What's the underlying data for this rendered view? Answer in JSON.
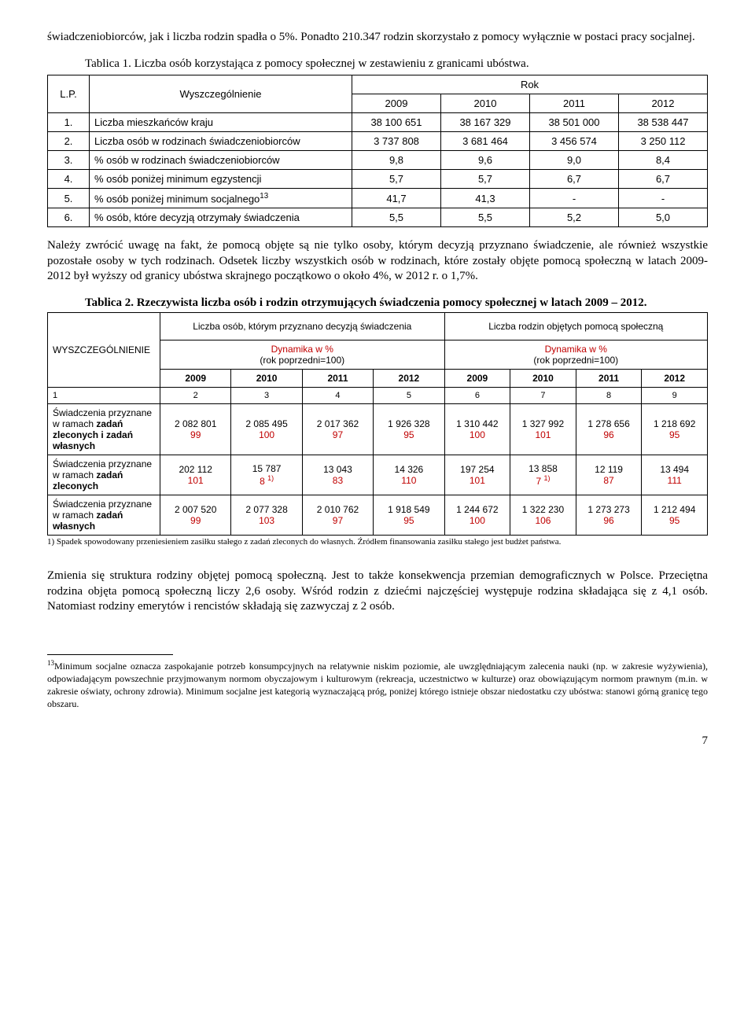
{
  "intro": "świadczeniobiorców, jak i liczba rodzin spadła o 5%. Ponadto 210.347 rodzin skorzystało z pomocy wyłącznie w postaci pracy socjalnej.",
  "table1": {
    "caption": "Tablica 1. Liczba osób korzystająca z pomocy społecznej w zestawieniu z granicami ubóstwa.",
    "lp": "L.P.",
    "wysz": "Wyszczególnienie",
    "rok": "Rok",
    "years": [
      "2009",
      "2010",
      "2011",
      "2012"
    ],
    "rows": [
      {
        "n": "1.",
        "label": "Liczba mieszkańców kraju",
        "v": [
          "38 100 651",
          "38 167 329",
          "38 501 000",
          "38 538 447"
        ]
      },
      {
        "n": "2.",
        "label": "Liczba osób w rodzinach świadczeniobiorców",
        "v": [
          "3 737 808",
          "3 681 464",
          "3 456 574",
          "3 250 112"
        ]
      },
      {
        "n": "3.",
        "label": "% osób w rodzinach świadczeniobiorców",
        "v": [
          "9,8",
          "9,6",
          "9,0",
          "8,4"
        ]
      },
      {
        "n": "4.",
        "label": "% osób poniżej minimum egzystencji",
        "v": [
          "5,7",
          "5,7",
          "6,7",
          "6,7"
        ]
      },
      {
        "n": "5.",
        "label_pre": "% osób poniżej minimum socjalnego",
        "label_sup": "13",
        "v": [
          "41,7",
          "41,3",
          "-",
          "-"
        ]
      },
      {
        "n": "6.",
        "label": "% osób, które decyzją otrzymały świadczenia",
        "v": [
          "5,5",
          "5,5",
          "5,2",
          "5,0"
        ]
      }
    ]
  },
  "middle": "Należy zwrócić uwagę na fakt, że pomocą objęte są nie tylko osoby, którym decyzją przyznano świadczenie, ale również wszystkie pozostałe osoby w tych rodzinach. Odsetek liczby wszystkich osób w rodzinach, które zostały objęte pomocą społeczną w latach 2009-2012 był wyższy od granicy ubóstwa skrajnego początkowo o około 4%, w 2012 r. o 1,7%.",
  "table2": {
    "caption": "Tablica 2. Rzeczywista liczba osób i rodzin otrzymujących świadczenia pomocy społecznej w latach 2009 – 2012.",
    "wysz": "WYSZCZEGÓLNIENIE",
    "grp1": "Liczba osób, którym przyznano decyzją świadczenia",
    "grp2": "Liczba rodzin objętych pomocą społeczną",
    "dyn1": "Dynamika w %",
    "dyn2": "(rok poprzedni=100)",
    "years": [
      "2009",
      "2010",
      "2011",
      "2012",
      "2009",
      "2010",
      "2011",
      "2012"
    ],
    "colnums": [
      "1",
      "2",
      "3",
      "4",
      "5",
      "6",
      "7",
      "8",
      "9"
    ],
    "rows": [
      {
        "label_parts": [
          "Świadczenia przyznane ",
          "w ramach ",
          "zadań zleconych i zadań własnych"
        ],
        "v": [
          "2 082 801",
          "2 085 495",
          "2 017 362",
          "1 926 328",
          "1 310 442",
          "1 327 992",
          "1 278 656",
          "1 218 692"
        ],
        "d": [
          "99",
          "100",
          "97",
          "95",
          "100",
          "101",
          "96",
          "95"
        ]
      },
      {
        "label_parts": [
          "Świadczenia przyznane w ",
          "ramach ",
          "zadań zleconych"
        ],
        "v": [
          "202 112",
          "15 787",
          "13 043",
          "14 326",
          "197 254",
          "13 858",
          "12 119",
          "13 494"
        ],
        "d": [
          "101",
          "8 ",
          "83",
          "110",
          "101",
          "7 ",
          "87",
          "111"
        ],
        "sup": [
          null,
          "1)",
          null,
          null,
          null,
          "1)",
          null,
          null
        ]
      },
      {
        "label_parts": [
          "Świadczenia przyznane w ",
          "ramach ",
          "zadań własnych"
        ],
        "v": [
          "2 007 520",
          "2 077 328",
          "2 010 762",
          "1 918 549",
          "1 244 672",
          "1 322 230",
          "1 273 273",
          "1 212 494"
        ],
        "d": [
          "99",
          "103",
          "97",
          "95",
          "100",
          "106",
          "96",
          "95"
        ]
      }
    ],
    "footnote": "1) Spadek spowodowany przeniesieniem zasiłku stałego z zadań zleconych do własnych. Źródłem finansowania zasiłku stałego jest budżet państwa."
  },
  "after": "Zmienia się struktura rodziny objętej pomocą społeczną. Jest to także konsekwencja przemian demograficznych w Polsce. Przeciętna rodzina objęta pomocą społeczną liczy 2,6 osoby. Wśród rodzin z dziećmi najczęściej występuje rodzina składająca się z 4,1 osób. Natomiast rodziny emerytów i rencistów składają się zazwyczaj z 2 osób.",
  "footnote13_sup": "13",
  "footnote13": "Minimum socjalne oznacza zaspokajanie potrzeb konsumpcyjnych na relatywnie niskim poziomie, ale uwzględniającym zalecenia nauki (np. w zakresie wyżywienia), odpowiadającym powszechnie przyjmowanym normom obyczajowym i kulturowym (rekreacja, uczestnictwo w kulturze) oraz obowiązującym normom prawnym (m.in. w zakresie oświaty, ochrony zdrowia). Minimum socjalne jest kategorią wyznaczającą próg, poniżej którego istnieje obszar niedostatku czy ubóstwa: stanowi górną granicę tego obszaru.",
  "page": "7"
}
